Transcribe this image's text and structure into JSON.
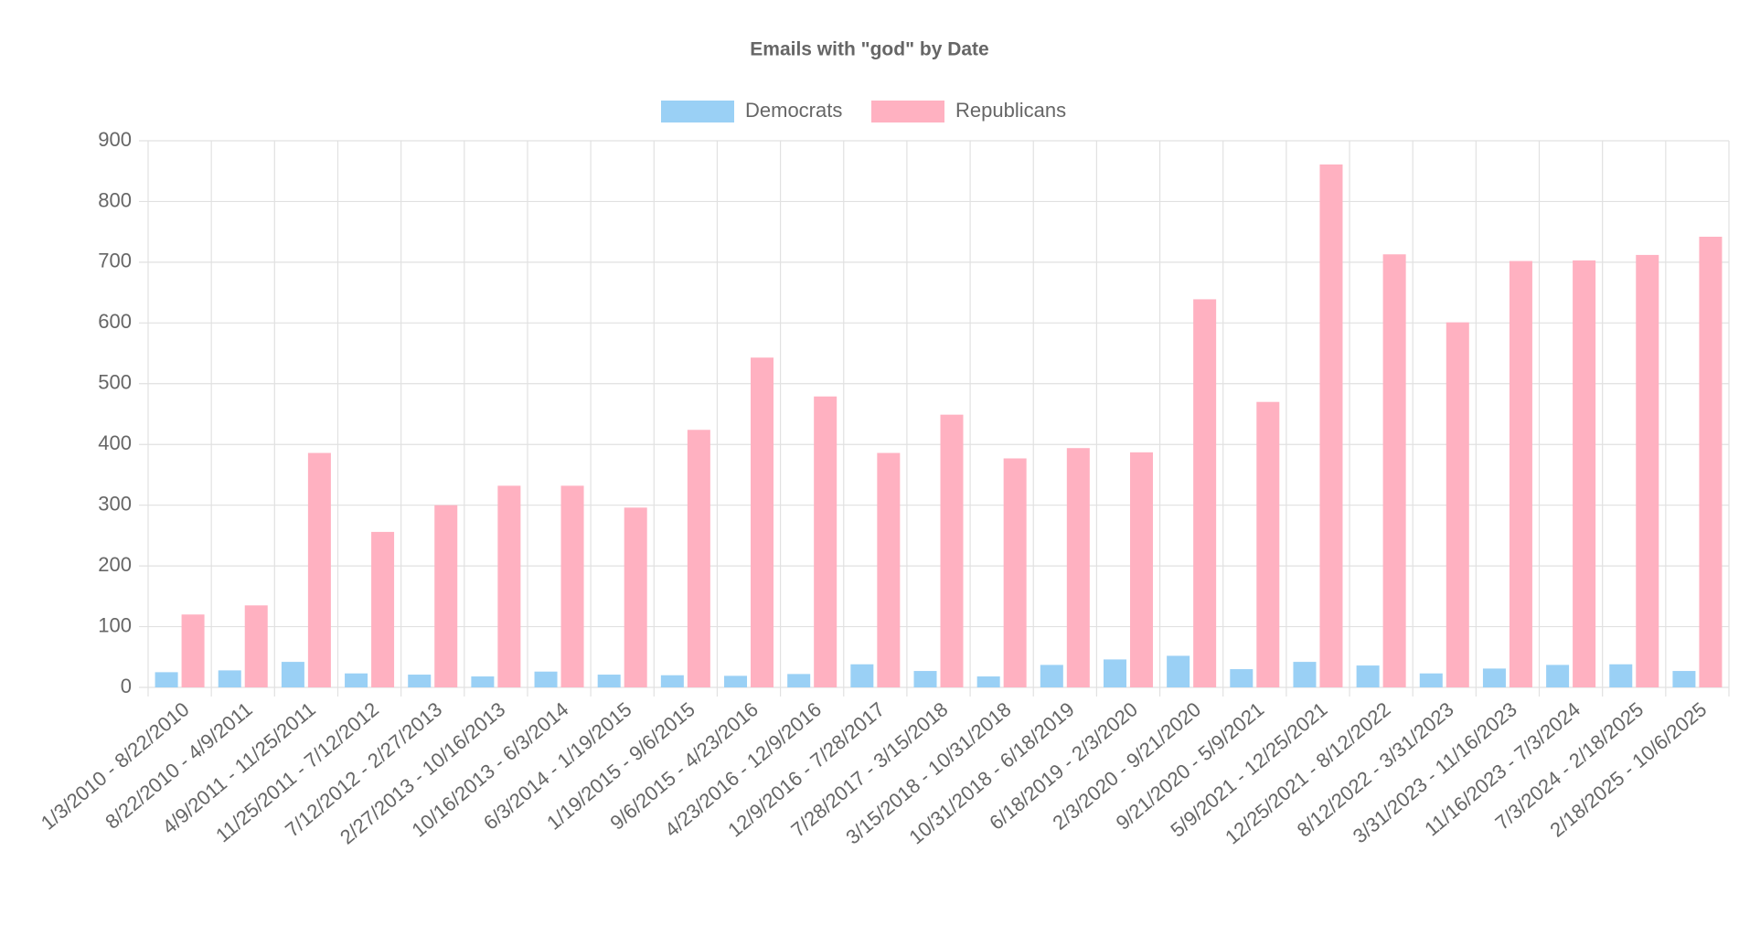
{
  "chart_data": {
    "type": "bar",
    "title": "Emails with \"god\" by Date",
    "categories": [
      "1/3/2010 - 8/22/2010",
      "8/22/2010 - 4/9/2011",
      "4/9/2011 - 11/25/2011",
      "11/25/2011 - 7/12/2012",
      "7/12/2012 - 2/27/2013",
      "2/27/2013 - 10/16/2013",
      "10/16/2013 - 6/3/2014",
      "6/3/2014 - 1/19/2015",
      "1/19/2015 - 9/6/2015",
      "9/6/2015 - 4/23/2016",
      "4/23/2016 - 12/9/2016",
      "12/9/2016 - 7/28/2017",
      "7/28/2017 - 3/15/2018",
      "3/15/2018 - 10/31/2018",
      "10/31/2018 - 6/18/2019",
      "6/18/2019 - 2/3/2020",
      "2/3/2020 - 9/21/2020",
      "9/21/2020 - 5/9/2021",
      "5/9/2021 - 12/25/2021",
      "12/25/2021 - 8/12/2022",
      "8/12/2022 - 3/31/2023",
      "3/31/2023 - 11/16/2023",
      "11/16/2023 - 7/3/2024",
      "7/3/2024 - 2/18/2025",
      "2/18/2025 - 10/6/2025"
    ],
    "series": [
      {
        "name": "Democrats",
        "color": "#9ad0f5",
        "values": [
          25,
          28,
          42,
          23,
          21,
          18,
          26,
          21,
          20,
          19,
          22,
          38,
          27,
          18,
          37,
          46,
          52,
          30,
          42,
          36,
          23,
          31,
          37,
          38,
          27
        ]
      },
      {
        "name": "Republicans",
        "color": "#ffb1c1",
        "values": [
          120,
          135,
          386,
          256,
          300,
          332,
          332,
          296,
          424,
          543,
          479,
          386,
          449,
          377,
          394,
          387,
          639,
          470,
          861,
          713,
          601,
          702,
          703,
          712,
          742
        ]
      }
    ],
    "ylim": [
      0,
      900
    ],
    "yticks": [
      0,
      100,
      200,
      300,
      400,
      500,
      600,
      700,
      800,
      900
    ],
    "grid": true
  }
}
